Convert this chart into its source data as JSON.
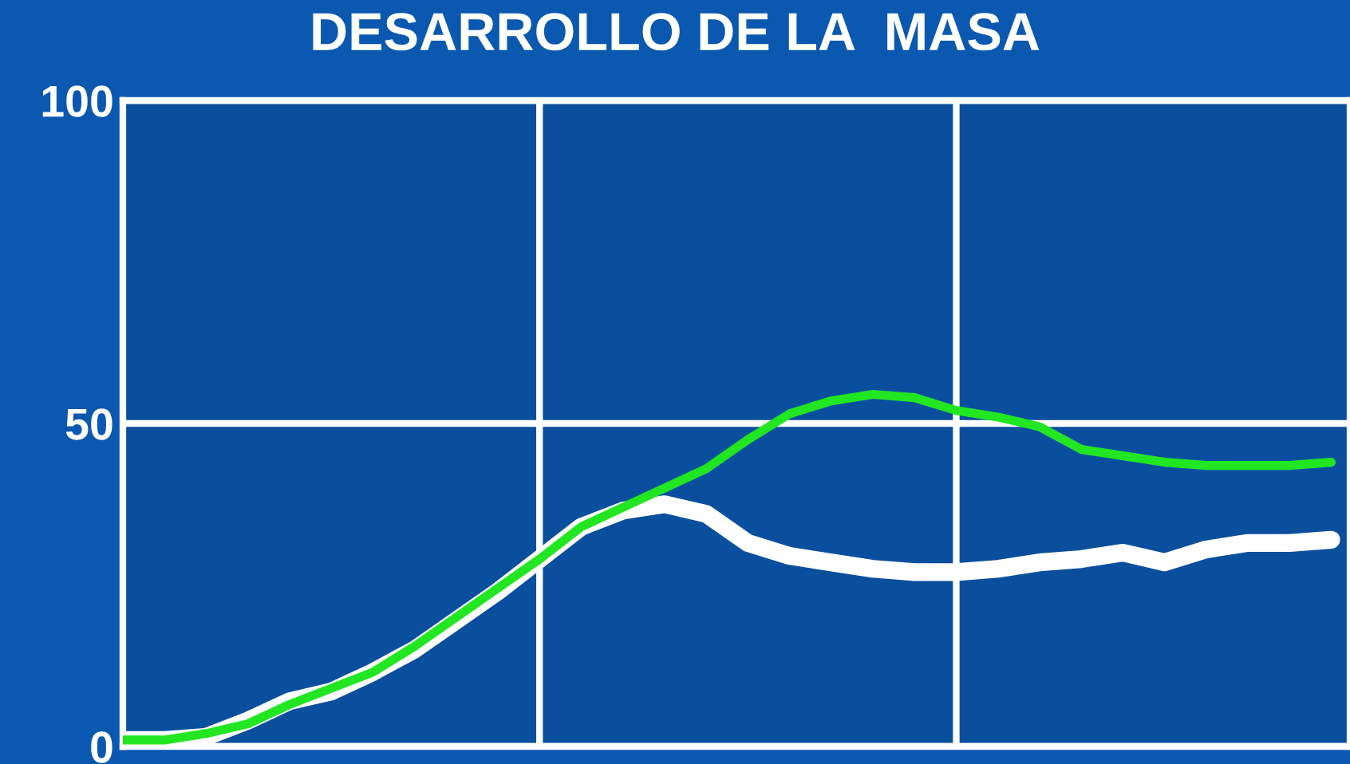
{
  "chart_data": {
    "type": "line",
    "title": "DESARROLLO DE LA  MASA",
    "categories": [
      null,
      null,
      null,
      null,
      null,
      null,
      null,
      null,
      null,
      null,
      null,
      null,
      null,
      null,
      null,
      null,
      null,
      null,
      null,
      null,
      null,
      null,
      null,
      null,
      null,
      null,
      null,
      null,
      null,
      null
    ],
    "ylim": [
      0,
      100
    ],
    "yticks": [
      0,
      50,
      100
    ],
    "grid": true,
    "tick_labels": "y",
    "marker": "none",
    "line_style": "solid",
    "series": [
      {
        "color": "#ffffff",
        "values": [
          1,
          1,
          1.5,
          4,
          7,
          8.5,
          11.5,
          15,
          19.5,
          24,
          29,
          34,
          36.5,
          37.5,
          36,
          31.5,
          29.5,
          28.5,
          27.5,
          27,
          27,
          27.5,
          28.5,
          29,
          30,
          28.5,
          30.5,
          31.5,
          31.5,
          32
        ]
      },
      {
        "color": "#22e622",
        "values": [
          1,
          1,
          2,
          3.5,
          6.5,
          9,
          11.5,
          15.5,
          20,
          24.5,
          29,
          34,
          37,
          40,
          43,
          47.5,
          51.5,
          53.5,
          54.5,
          54,
          52,
          51,
          49.5,
          46,
          45,
          44,
          43.5,
          43.5,
          43.5,
          44
        ]
      }
    ]
  }
}
